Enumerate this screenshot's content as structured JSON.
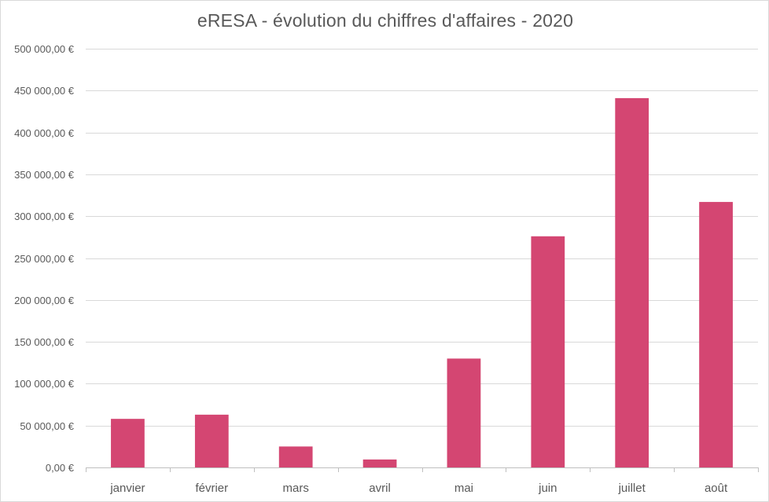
{
  "chart_data": {
    "type": "bar",
    "title": "eRESA - évolution du chiffres d'affaires - 2020",
    "xlabel": "",
    "ylabel": "",
    "categories": [
      "janvier",
      "février",
      "mars",
      "avril",
      "mai",
      "juin",
      "juillet",
      "août"
    ],
    "values": [
      58000,
      63000,
      25000,
      9500,
      130000,
      276000,
      441000,
      317000
    ],
    "ylim": [
      0,
      500000
    ],
    "y_ticks": [
      0,
      50000,
      100000,
      150000,
      200000,
      250000,
      300000,
      350000,
      400000,
      450000,
      500000
    ],
    "y_tick_labels": [
      "0,00 €",
      "50 000,00 €",
      "100 000,00 €",
      "150 000,00 €",
      "200 000,00 €",
      "250 000,00 €",
      "300 000,00 €",
      "350 000,00 €",
      "400 000,00 €",
      "450 000,00 €",
      "500 000,00 €"
    ],
    "grid": true,
    "legend": "none",
    "bar_color": "#d44672",
    "grid_color": "#d9d9d9",
    "axis_color": "#bfbfbf"
  }
}
